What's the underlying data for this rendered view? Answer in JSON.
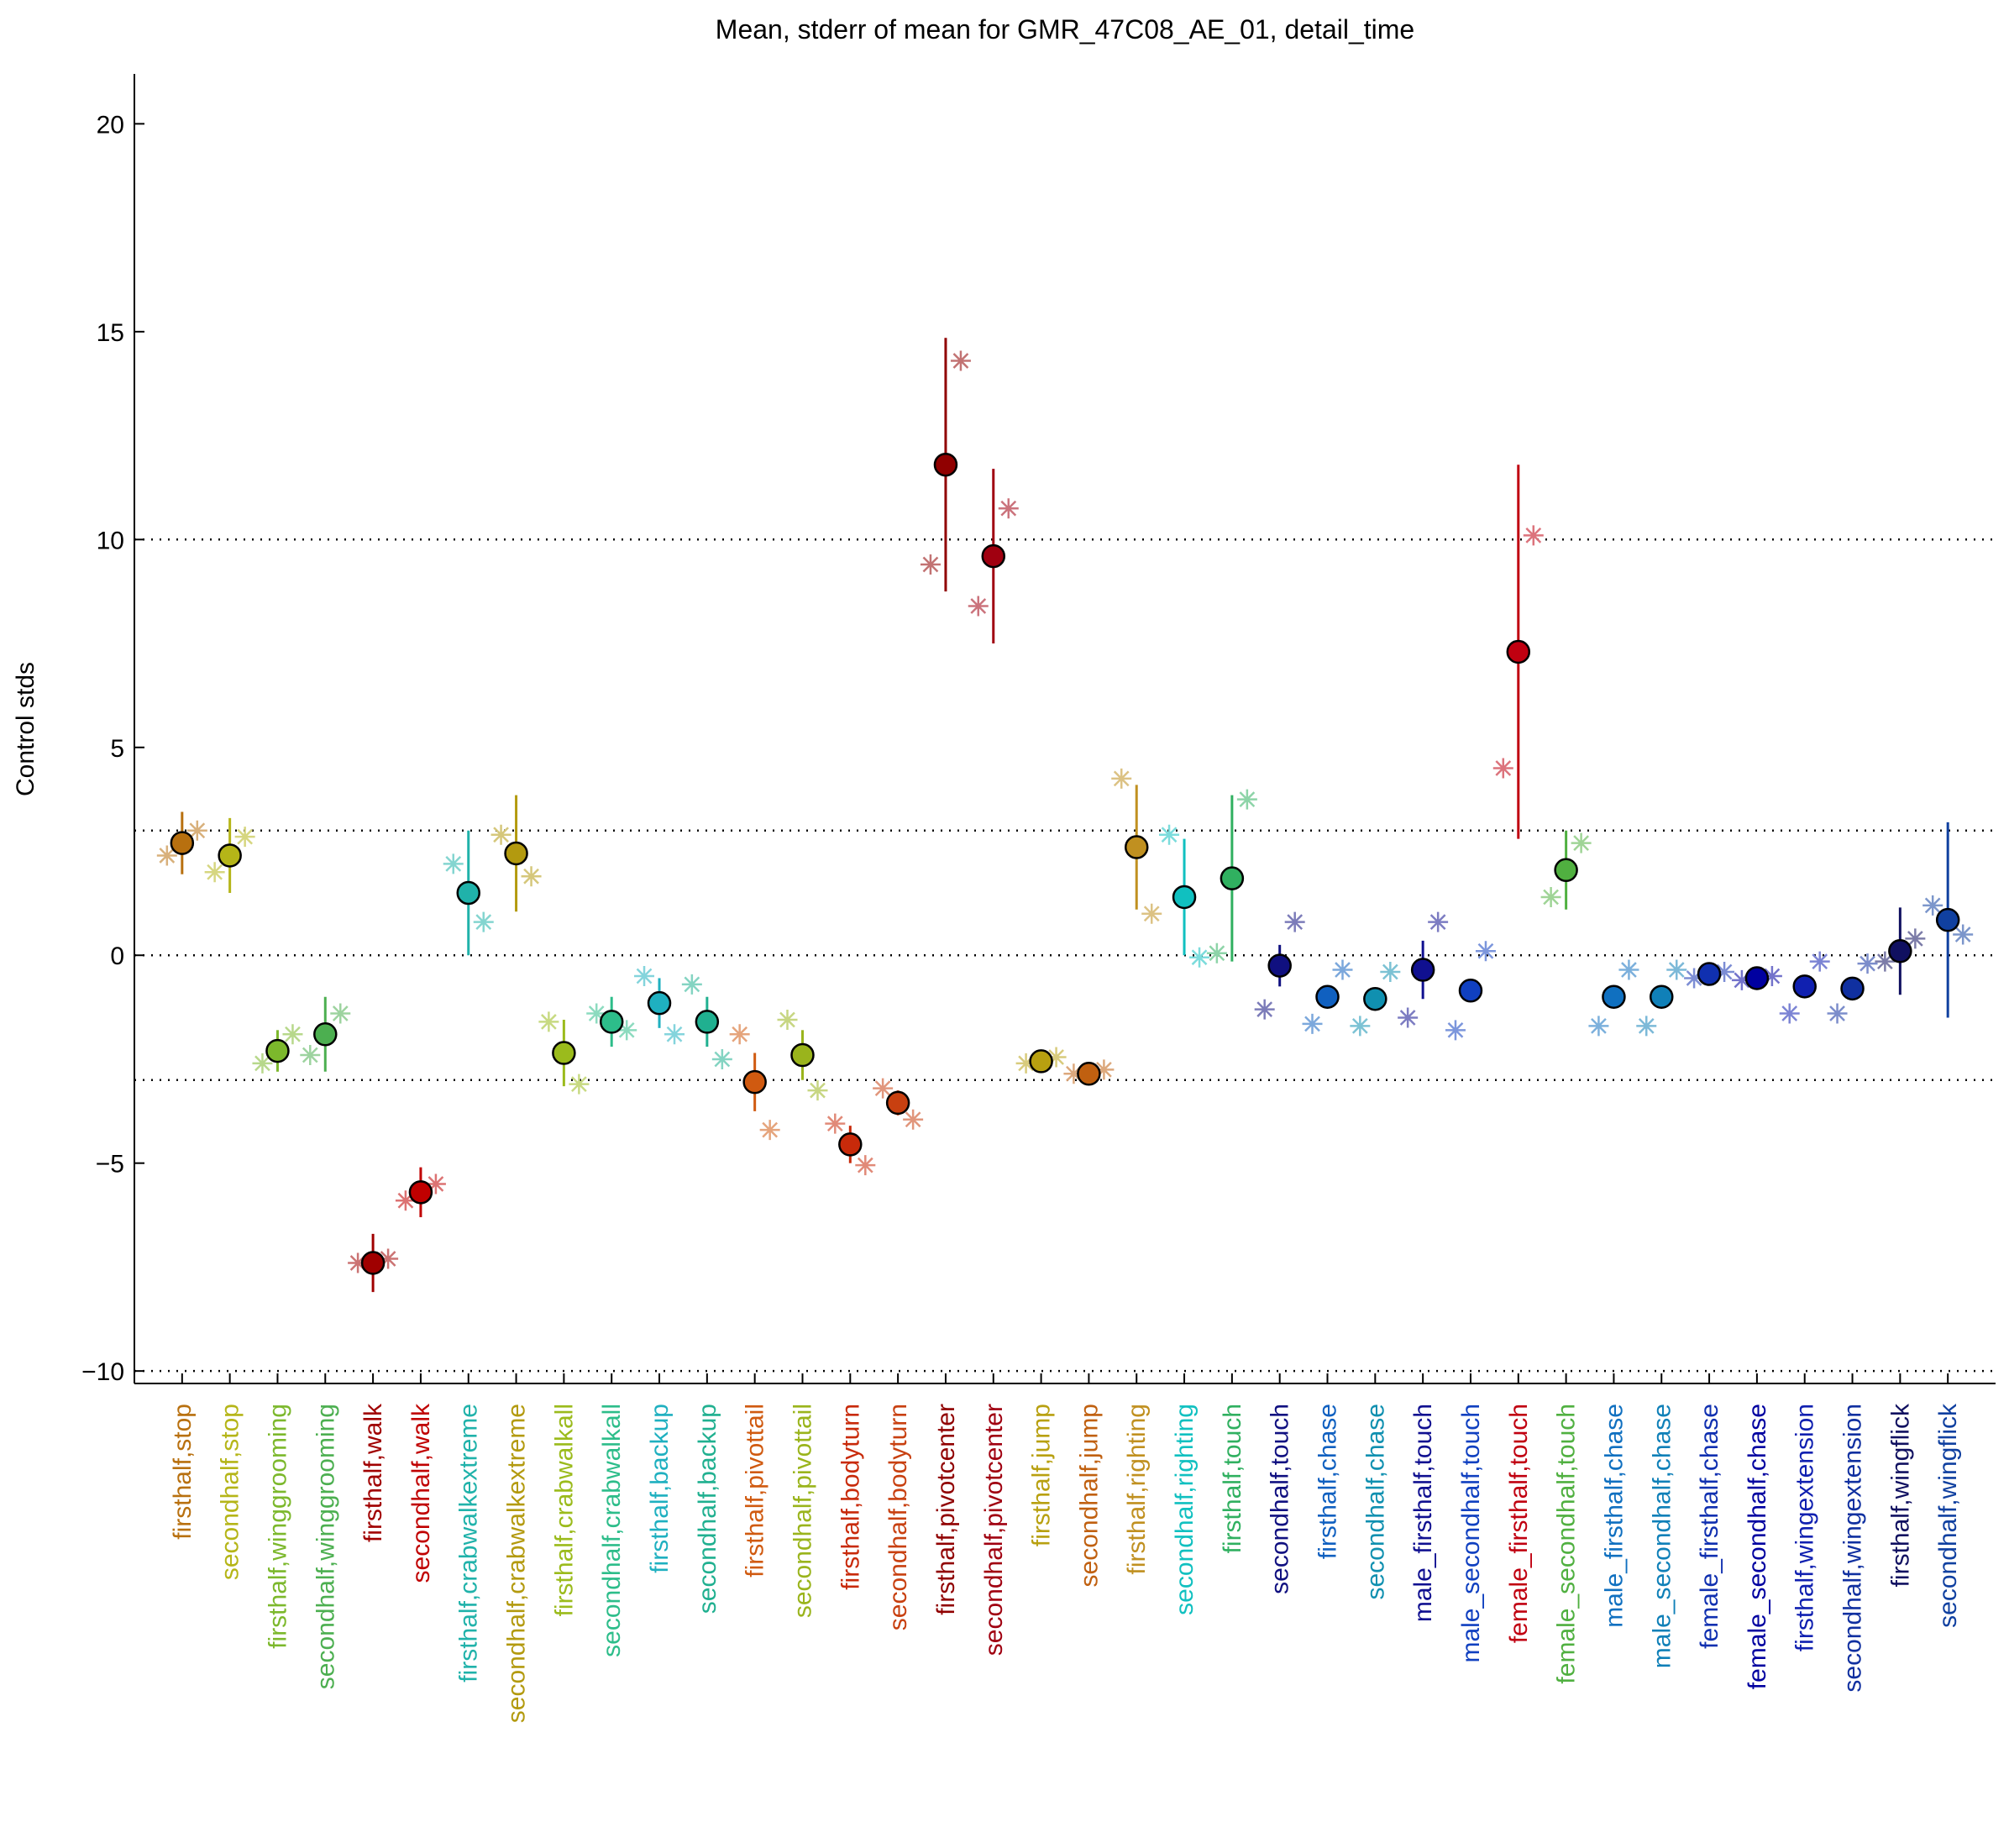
{
  "chart_data": {
    "type": "errorbar",
    "title": "Mean, stderr of mean for GMR_47C08_AE_01, detail_time",
    "y_label": "Control stds",
    "categories": [
      "firsthalf,stop",
      "secondhalf,stop",
      "firsthalf,winggrooming",
      "secondhalf,winggrooming",
      "firsthalf,walk",
      "secondhalf,walk",
      "firsthalf,crabwalkextreme",
      "secondhalf,crabwalkextreme",
      "firsthalf,crabwalkall",
      "secondhalf,crabwalkall",
      "firsthalf,backup",
      "secondhalf,backup",
      "firsthalf,pivottail",
      "secondhalf,pivottail",
      "firsthalf,bodyturn",
      "secondhalf,bodyturn",
      "firsthalf,pivotcenter",
      "secondhalf,pivotcenter",
      "firsthalf,jump",
      "secondhalf,jump",
      "firsthalf,righting",
      "secondhalf,righting",
      "firsthalf,touch",
      "secondhalf,touch",
      "firsthalf,chase",
      "secondhalf,chase",
      "male_firsthalf,touch",
      "male_secondhalf,touch",
      "female_firsthalf,touch",
      "female_secondhalf,touch",
      "male_firsthalf,chase",
      "male_secondhalf,chase",
      "female_firsthalf,chase",
      "female_secondhalf,chase",
      "firsthalf,wingextension",
      "secondhalf,wingextension",
      "firsthalf,wingflick",
      "secondhalf,wingflick"
    ],
    "values": [
      2.7,
      2.4,
      -2.3,
      -1.9,
      -7.4,
      -5.7,
      1.5,
      2.45,
      -2.35,
      -1.6,
      -1.15,
      -1.6,
      -3.05,
      -2.4,
      -4.55,
      -3.55,
      11.8,
      9.6,
      -2.55,
      -2.85,
      2.6,
      1.4,
      1.85,
      -0.25,
      -1.0,
      -1.05,
      -0.35,
      -0.85,
      7.3,
      2.05,
      -1.0,
      -1.0,
      -0.45,
      -0.55,
      -0.75,
      -0.8,
      0.1,
      0.85
    ],
    "errors": [
      0.75,
      0.9,
      0.5,
      0.9,
      0.7,
      0.6,
      1.5,
      1.4,
      0.8,
      0.6,
      0.6,
      0.6,
      0.7,
      0.6,
      0.45,
      0.3,
      3.05,
      2.1,
      0.15,
      0.1,
      1.5,
      1.4,
      2.0,
      0.5,
      0.05,
      0.05,
      0.7,
      0.2,
      4.5,
      0.95,
      0.05,
      0.05,
      0.05,
      0.05,
      0.05,
      0.05,
      1.05,
      2.35
    ],
    "replicates": [
      [
        2.4,
        3.0
      ],
      [
        2.0,
        2.85
      ],
      [
        -2.6,
        -1.9
      ],
      [
        -2.4,
        -1.4
      ],
      [
        -7.4,
        -7.3
      ],
      [
        -5.9,
        -5.5
      ],
      [
        2.2,
        0.8
      ],
      [
        2.9,
        1.9
      ],
      [
        -1.6,
        -3.1
      ],
      [
        -1.4,
        -1.8
      ],
      [
        -0.5,
        -1.9
      ],
      [
        -0.7,
        -2.5
      ],
      [
        -1.9,
        -4.2
      ],
      [
        -1.55,
        -3.25
      ],
      [
        -4.05,
        -5.05
      ],
      [
        -3.2,
        -3.95
      ],
      [
        9.4,
        14.3
      ],
      [
        8.4,
        10.75
      ],
      [
        -2.6,
        -2.45
      ],
      [
        -2.85,
        -2.75
      ],
      [
        4.25,
        1.0
      ],
      [
        2.9,
        -0.05
      ],
      [
        0.05,
        3.75
      ],
      [
        -1.3,
        0.8
      ],
      [
        -1.65,
        -0.35
      ],
      [
        -1.7,
        -0.4
      ],
      [
        -1.5,
        0.8
      ],
      [
        -1.8,
        0.1
      ],
      [
        4.5,
        10.1
      ],
      [
        1.4,
        2.7
      ],
      [
        -1.7,
        -0.35
      ],
      [
        -1.7,
        -0.35
      ],
      [
        -0.55,
        -0.4
      ],
      [
        -0.6,
        -0.5
      ],
      [
        -1.4,
        -0.15
      ],
      [
        -1.4,
        -0.2
      ],
      [
        -0.15,
        0.4
      ],
      [
        1.2,
        0.5
      ]
    ],
    "colors": [
      "#b8700f",
      "#b5b518",
      "#7cb82c",
      "#4caf50",
      "#a00000",
      "#c00000",
      "#20b2aa",
      "#b39a0f",
      "#9bbb1c",
      "#2dbd8a",
      "#1fb0c0",
      "#20b090",
      "#d05a10",
      "#9ab41c",
      "#c82a0a",
      "#c84010",
      "#900000",
      "#a00010",
      "#b8a010",
      "#c06010",
      "#c09020",
      "#10c0c0",
      "#30b060",
      "#101080",
      "#1060c0",
      "#1090b0",
      "#101090",
      "#1040c0",
      "#c00010",
      "#50b040",
      "#1070c0",
      "#1080b8",
      "#1030b0",
      "#0000a0",
      "#1020b0",
      "#1030a0",
      "#101060",
      "#1040a0"
    ],
    "ylim": [
      -10.3,
      21.2
    ],
    "yticks": [
      {
        "value": -10,
        "label": "−10"
      },
      {
        "value": -5,
        "label": "−5"
      },
      0,
      5,
      10,
      15,
      20
    ],
    "hlines": [
      -10,
      -3,
      0,
      3,
      10
    ]
  }
}
